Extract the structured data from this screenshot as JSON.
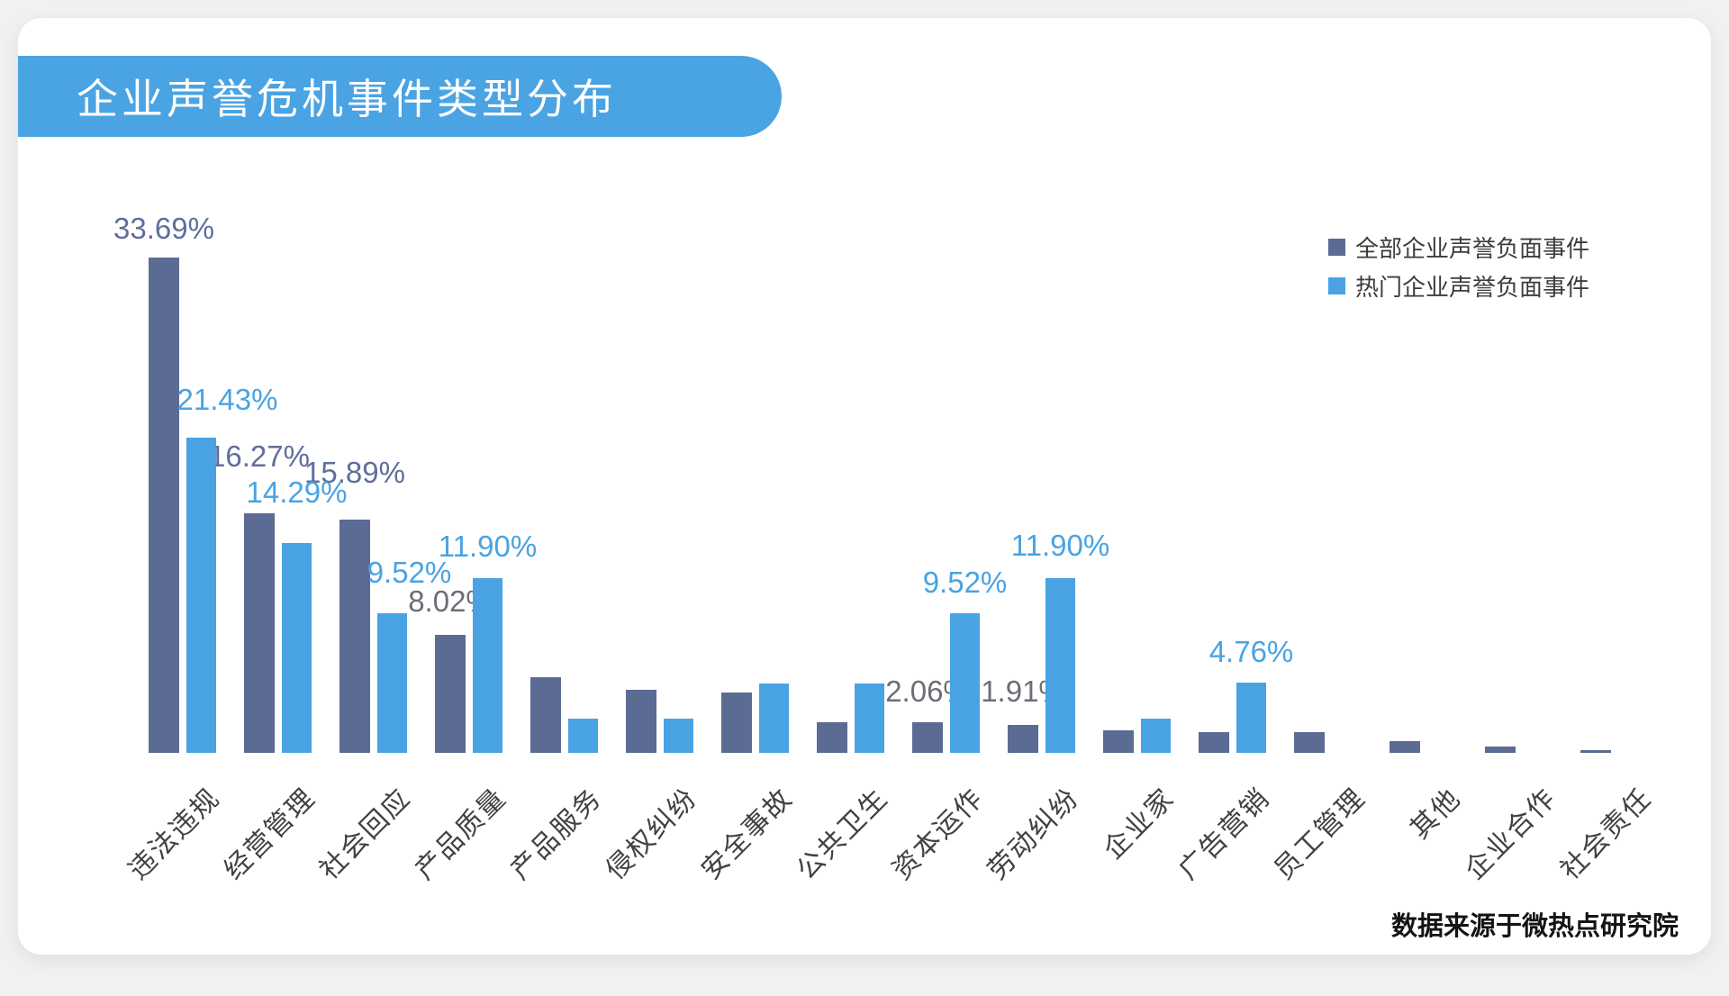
{
  "page": {
    "title": "企业声誉危机事件类型分布",
    "source": "数据来源于微热点研究院"
  },
  "colors": {
    "banner": "#4aa3e3",
    "page_bg": "#eff1f2",
    "card_bg": "#ffffff",
    "series_all": "#5b6b94",
    "series_hot": "#49a3e2",
    "dark_label_blue": "#5f6e9b",
    "dark_label_gray": "#6b6e78",
    "axis_label": "#414141"
  },
  "legend": [
    {
      "label": "全部企业声誉负面事件",
      "color": "#5b6b94"
    },
    {
      "label": "热门企业声誉负面事件",
      "color": "#49a3e2"
    }
  ],
  "chart_data": {
    "type": "bar",
    "title": "企业声誉危机事件类型分布",
    "xlabel": "",
    "ylabel": "",
    "ylim": [
      0,
      36
    ],
    "grid": false,
    "legend_position": "top-right",
    "categories": [
      "违法违规",
      "经营管理",
      "社会回应",
      "产品质量",
      "产品服务",
      "侵权纠纷",
      "安全事故",
      "公共卫生",
      "资本运作",
      "劳动纠纷",
      "企业家",
      "广告营销",
      "员工管理",
      "其他",
      "企业合作",
      "社会责任"
    ],
    "series": [
      {
        "name": "全部企业声誉负面事件",
        "color": "#5b6b94",
        "values": [
          33.69,
          16.27,
          15.89,
          8.02,
          5.14,
          4.29,
          4.1,
          2.08,
          2.06,
          1.91,
          1.53,
          1.41,
          1.41,
          0.8,
          0.43,
          0.21
        ],
        "labels": [
          "33.69%",
          "16.27%",
          "15.89%",
          "8.02%",
          "",
          "",
          "",
          "",
          "2.06%",
          "1.91%",
          "",
          "",
          "",
          "",
          "",
          ""
        ],
        "label_colors": [
          "#5f6e9b",
          "#5f6e9b",
          "#5f6e9b",
          "#6b6e78",
          "",
          "",
          "",
          "",
          "#6b6e78",
          "#6b6e78",
          "",
          "",
          "",
          "",
          "",
          ""
        ]
      },
      {
        "name": "热门企业声誉负面事件",
        "color": "#49a3e2",
        "values": [
          21.43,
          14.29,
          9.52,
          11.9,
          2.33,
          2.33,
          4.72,
          4.72,
          9.52,
          11.9,
          2.33,
          4.76,
          0,
          0,
          0,
          0
        ],
        "labels": [
          "21.43%",
          "14.29%",
          "9.52%",
          "11.90%",
          "",
          "",
          "",
          "",
          "9.52%",
          "11.90%",
          "",
          "4.76%",
          "",
          "",
          "",
          ""
        ],
        "label_colors": [
          "#49a3e2",
          "#49a3e2",
          "#49a3e2",
          "#49a3e2",
          "",
          "",
          "",
          "",
          "#49a3e2",
          "#49a3e2",
          "",
          "#49a3e2",
          "",
          "",
          "",
          ""
        ]
      }
    ]
  }
}
